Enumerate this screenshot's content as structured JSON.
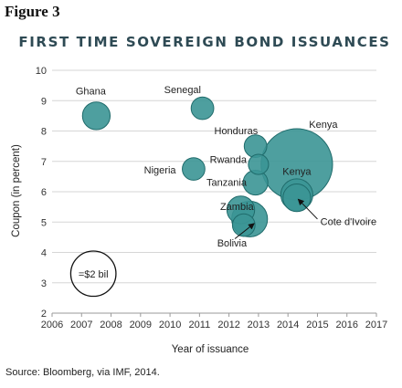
{
  "figure_label": "Figure 3",
  "source": "Source: Bloomberg, via IMF, 2014.",
  "chart_data": {
    "type": "scatter",
    "title": "FIRST TIME SOVEREIGN BOND ISSUANCES",
    "xlabel": "Year of issuance",
    "ylabel": "Coupon (in percent)",
    "xlim": [
      2006,
      2017
    ],
    "ylim": [
      2,
      10
    ],
    "x_ticks": [
      "2006",
      "2007",
      "2008",
      "2009",
      "2010",
      "2011",
      "2012",
      "2013",
      "2014",
      "2015",
      "2016",
      "2017"
    ],
    "y_ticks": [
      "2",
      "3",
      "4",
      "5",
      "6",
      "7",
      "8",
      "9",
      "10"
    ],
    "grid": true,
    "bubble_color": "#3b9595",
    "bubble_stroke": "#1f6b6b",
    "points": [
      {
        "name": "Ghana",
        "x": 2007.5,
        "y": 8.5,
        "size": 0.75
      },
      {
        "name": "Senegal",
        "x": 2011.1,
        "y": 8.75,
        "size": 0.5
      },
      {
        "name": "Nigeria",
        "x": 2010.8,
        "y": 6.75,
        "size": 0.5
      },
      {
        "name": "Honduras",
        "x": 2012.9,
        "y": 7.5,
        "size": 0.5
      },
      {
        "name": "Rwanda",
        "x": 2013.0,
        "y": 6.9,
        "size": 0.4
      },
      {
        "name": "Tanzania",
        "x": 2012.9,
        "y": 6.3,
        "size": 0.6
      },
      {
        "name": "Kenya",
        "x": 2014.3,
        "y": 6.9,
        "size": 5.0
      },
      {
        "name": "Kenya",
        "x": 2014.3,
        "y": 5.9,
        "size": 1.0
      },
      {
        "name": "Zambia",
        "x": 2012.4,
        "y": 5.4,
        "size": 0.75
      },
      {
        "name": "Zambia",
        "x": 2012.7,
        "y": 5.1,
        "size": 1.25
      },
      {
        "name": "Bolivia",
        "x": 2012.5,
        "y": 4.9,
        "size": 0.5
      },
      {
        "name": "Cote d'Ivoire",
        "x": 2014.3,
        "y": 5.8,
        "size": 0.75
      }
    ],
    "labels": [
      {
        "text": "Ghana",
        "x": 2006.8,
        "y": 9.2,
        "anchor": "start"
      },
      {
        "text": "Senegal",
        "x": 2009.8,
        "y": 9.25,
        "anchor": "start"
      },
      {
        "text": "Honduras",
        "x": 2011.5,
        "y": 7.9,
        "anchor": "start"
      },
      {
        "text": "Kenya",
        "x": 2015.2,
        "y": 8.1,
        "anchor": "middle"
      },
      {
        "text": "Nigeria",
        "x": 2010.2,
        "y": 6.6,
        "anchor": "end"
      },
      {
        "text": "Rwanda",
        "x": 2012.6,
        "y": 6.95,
        "anchor": "end"
      },
      {
        "text": "Tanzania",
        "x": 2012.6,
        "y": 6.2,
        "anchor": "end"
      },
      {
        "text": "Kenya",
        "x": 2014.3,
        "y": 6.55,
        "anchor": "middle"
      },
      {
        "text": "Zambia",
        "x": 2011.7,
        "y": 5.4,
        "anchor": "start"
      },
      {
        "text": "Bolivia",
        "x": 2011.6,
        "y": 4.2,
        "anchor": "start"
      },
      {
        "text": "Cote d'Ivoire",
        "x": 2015.1,
        "y": 4.9,
        "anchor": "start"
      }
    ],
    "arrows": [
      {
        "from": [
          2012.2,
          4.45
        ],
        "to": [
          2012.85,
          4.95
        ]
      },
      {
        "from": [
          2015.0,
          5.1
        ],
        "to": [
          2014.35,
          5.75
        ]
      }
    ],
    "reference_bubble": {
      "label": "=$2 bil",
      "x": 2007.4,
      "y": 3.3,
      "size": 2.0
    }
  }
}
